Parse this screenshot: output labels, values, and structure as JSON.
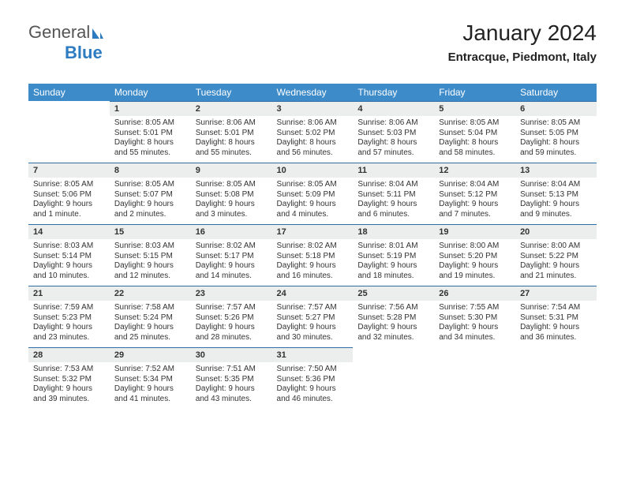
{
  "logo": {
    "text1": "General",
    "text2": "Blue"
  },
  "title": {
    "month": "January 2024",
    "location": "Entracque, Piedmont, Italy"
  },
  "day_headers": [
    "Sunday",
    "Monday",
    "Tuesday",
    "Wednesday",
    "Thursday",
    "Friday",
    "Saturday"
  ],
  "colors": {
    "header_bg": "#3d8bc9",
    "daynum_bg": "#eceded",
    "border": "#2d6ea5",
    "logo_blue": "#2d7cc1"
  },
  "weeks": [
    [
      {
        "n": "",
        "lines": []
      },
      {
        "n": "1",
        "lines": [
          "Sunrise: 8:05 AM",
          "Sunset: 5:01 PM",
          "Daylight: 8 hours",
          "and 55 minutes."
        ]
      },
      {
        "n": "2",
        "lines": [
          "Sunrise: 8:06 AM",
          "Sunset: 5:01 PM",
          "Daylight: 8 hours",
          "and 55 minutes."
        ]
      },
      {
        "n": "3",
        "lines": [
          "Sunrise: 8:06 AM",
          "Sunset: 5:02 PM",
          "Daylight: 8 hours",
          "and 56 minutes."
        ]
      },
      {
        "n": "4",
        "lines": [
          "Sunrise: 8:06 AM",
          "Sunset: 5:03 PM",
          "Daylight: 8 hours",
          "and 57 minutes."
        ]
      },
      {
        "n": "5",
        "lines": [
          "Sunrise: 8:05 AM",
          "Sunset: 5:04 PM",
          "Daylight: 8 hours",
          "and 58 minutes."
        ]
      },
      {
        "n": "6",
        "lines": [
          "Sunrise: 8:05 AM",
          "Sunset: 5:05 PM",
          "Daylight: 8 hours",
          "and 59 minutes."
        ]
      }
    ],
    [
      {
        "n": "7",
        "lines": [
          "Sunrise: 8:05 AM",
          "Sunset: 5:06 PM",
          "Daylight: 9 hours",
          "and 1 minute."
        ]
      },
      {
        "n": "8",
        "lines": [
          "Sunrise: 8:05 AM",
          "Sunset: 5:07 PM",
          "Daylight: 9 hours",
          "and 2 minutes."
        ]
      },
      {
        "n": "9",
        "lines": [
          "Sunrise: 8:05 AM",
          "Sunset: 5:08 PM",
          "Daylight: 9 hours",
          "and 3 minutes."
        ]
      },
      {
        "n": "10",
        "lines": [
          "Sunrise: 8:05 AM",
          "Sunset: 5:09 PM",
          "Daylight: 9 hours",
          "and 4 minutes."
        ]
      },
      {
        "n": "11",
        "lines": [
          "Sunrise: 8:04 AM",
          "Sunset: 5:11 PM",
          "Daylight: 9 hours",
          "and 6 minutes."
        ]
      },
      {
        "n": "12",
        "lines": [
          "Sunrise: 8:04 AM",
          "Sunset: 5:12 PM",
          "Daylight: 9 hours",
          "and 7 minutes."
        ]
      },
      {
        "n": "13",
        "lines": [
          "Sunrise: 8:04 AM",
          "Sunset: 5:13 PM",
          "Daylight: 9 hours",
          "and 9 minutes."
        ]
      }
    ],
    [
      {
        "n": "14",
        "lines": [
          "Sunrise: 8:03 AM",
          "Sunset: 5:14 PM",
          "Daylight: 9 hours",
          "and 10 minutes."
        ]
      },
      {
        "n": "15",
        "lines": [
          "Sunrise: 8:03 AM",
          "Sunset: 5:15 PM",
          "Daylight: 9 hours",
          "and 12 minutes."
        ]
      },
      {
        "n": "16",
        "lines": [
          "Sunrise: 8:02 AM",
          "Sunset: 5:17 PM",
          "Daylight: 9 hours",
          "and 14 minutes."
        ]
      },
      {
        "n": "17",
        "lines": [
          "Sunrise: 8:02 AM",
          "Sunset: 5:18 PM",
          "Daylight: 9 hours",
          "and 16 minutes."
        ]
      },
      {
        "n": "18",
        "lines": [
          "Sunrise: 8:01 AM",
          "Sunset: 5:19 PM",
          "Daylight: 9 hours",
          "and 18 minutes."
        ]
      },
      {
        "n": "19",
        "lines": [
          "Sunrise: 8:00 AM",
          "Sunset: 5:20 PM",
          "Daylight: 9 hours",
          "and 19 minutes."
        ]
      },
      {
        "n": "20",
        "lines": [
          "Sunrise: 8:00 AM",
          "Sunset: 5:22 PM",
          "Daylight: 9 hours",
          "and 21 minutes."
        ]
      }
    ],
    [
      {
        "n": "21",
        "lines": [
          "Sunrise: 7:59 AM",
          "Sunset: 5:23 PM",
          "Daylight: 9 hours",
          "and 23 minutes."
        ]
      },
      {
        "n": "22",
        "lines": [
          "Sunrise: 7:58 AM",
          "Sunset: 5:24 PM",
          "Daylight: 9 hours",
          "and 25 minutes."
        ]
      },
      {
        "n": "23",
        "lines": [
          "Sunrise: 7:57 AM",
          "Sunset: 5:26 PM",
          "Daylight: 9 hours",
          "and 28 minutes."
        ]
      },
      {
        "n": "24",
        "lines": [
          "Sunrise: 7:57 AM",
          "Sunset: 5:27 PM",
          "Daylight: 9 hours",
          "and 30 minutes."
        ]
      },
      {
        "n": "25",
        "lines": [
          "Sunrise: 7:56 AM",
          "Sunset: 5:28 PM",
          "Daylight: 9 hours",
          "and 32 minutes."
        ]
      },
      {
        "n": "26",
        "lines": [
          "Sunrise: 7:55 AM",
          "Sunset: 5:30 PM",
          "Daylight: 9 hours",
          "and 34 minutes."
        ]
      },
      {
        "n": "27",
        "lines": [
          "Sunrise: 7:54 AM",
          "Sunset: 5:31 PM",
          "Daylight: 9 hours",
          "and 36 minutes."
        ]
      }
    ],
    [
      {
        "n": "28",
        "lines": [
          "Sunrise: 7:53 AM",
          "Sunset: 5:32 PM",
          "Daylight: 9 hours",
          "and 39 minutes."
        ]
      },
      {
        "n": "29",
        "lines": [
          "Sunrise: 7:52 AM",
          "Sunset: 5:34 PM",
          "Daylight: 9 hours",
          "and 41 minutes."
        ]
      },
      {
        "n": "30",
        "lines": [
          "Sunrise: 7:51 AM",
          "Sunset: 5:35 PM",
          "Daylight: 9 hours",
          "and 43 minutes."
        ]
      },
      {
        "n": "31",
        "lines": [
          "Sunrise: 7:50 AM",
          "Sunset: 5:36 PM",
          "Daylight: 9 hours",
          "and 46 minutes."
        ]
      },
      {
        "n": "",
        "lines": []
      },
      {
        "n": "",
        "lines": []
      },
      {
        "n": "",
        "lines": []
      }
    ]
  ]
}
